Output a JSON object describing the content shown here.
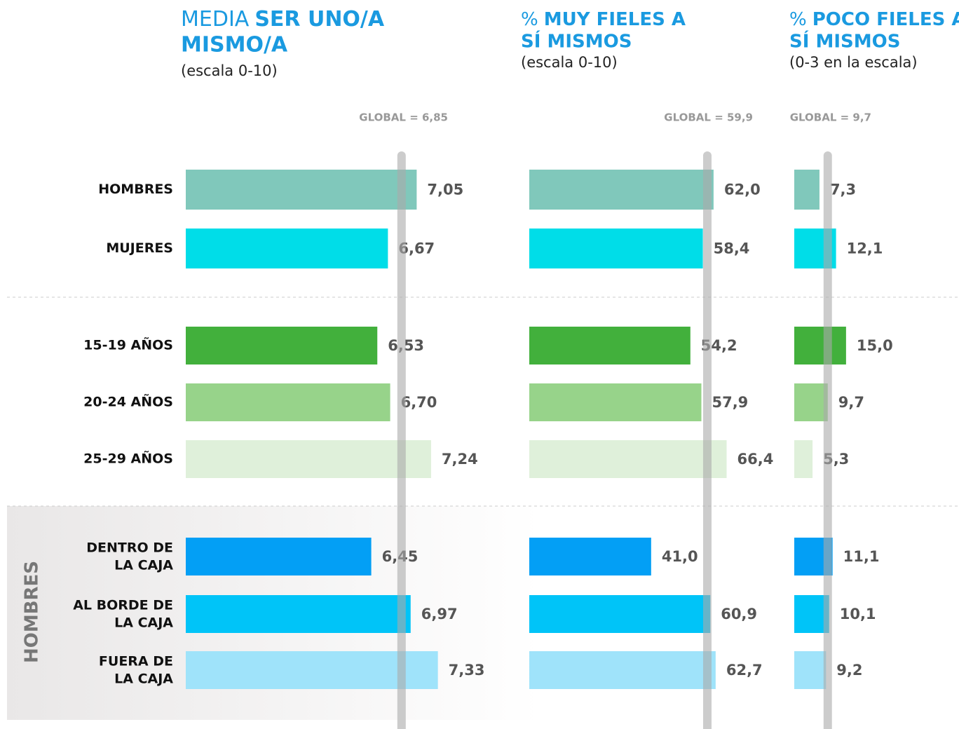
{
  "chart_data": {
    "type": "bar",
    "orientation": "horizontal",
    "categories": [
      "HOMBRES",
      "MUJERES",
      "15-19 AÑOS",
      "20-24 AÑOS",
      "25-29 AÑOS",
      [
        "DENTRO DE",
        "LA CAJA"
      ],
      [
        "AL BORDE DE",
        "LA CAJA"
      ],
      [
        "FUERA DE",
        "LA CAJA"
      ]
    ],
    "colors": [
      "#80c8bb",
      "#00dde8",
      "#42b03c",
      "#97d38a",
      "#dff0da",
      "#039ff5",
      "#00c4f8",
      "#9fe3fa"
    ],
    "group_label": "HOMBRES",
    "panels": [
      {
        "title": {
          "light": "MEDIA",
          "bold": [
            "SER UNO/A",
            "MISMO/A"
          ]
        },
        "subtitle": "(escala 0-10)",
        "global": 6.85,
        "global_label": "GLOBAL = 6,85",
        "xlim": [
          4,
          8
        ],
        "values": [
          7.05,
          6.67,
          6.53,
          6.7,
          7.24,
          6.45,
          6.97,
          7.33
        ],
        "value_labels": [
          "7,05",
          "6,67",
          "6,53",
          "6,70",
          "7,24",
          "6,45",
          "6,97",
          "7,33"
        ]
      },
      {
        "title": {
          "light": "%",
          "bold": [
            "MUY FIELES A",
            "SÍ MISMOS"
          ]
        },
        "subtitle": "(escala 0-10)",
        "global": 59.9,
        "global_label": "GLOBAL = 59,9",
        "xlim": [
          0,
          100
        ],
        "values": [
          62.0,
          58.4,
          54.2,
          57.9,
          66.4,
          41.0,
          60.9,
          62.7
        ],
        "value_labels": [
          "62,0",
          "58,4",
          "54,2",
          "57,9",
          "66,4",
          "41,0",
          "60,9",
          "62,7"
        ]
      },
      {
        "title": {
          "light": "%",
          "bold": [
            "POCO FIELES A",
            "SÍ MISMOS"
          ]
        },
        "subtitle": "(0-3 en la escala)",
        "global": 9.7,
        "global_label": "GLOBAL = 9,7",
        "xlim": [
          0,
          40
        ],
        "values": [
          7.3,
          12.1,
          15.0,
          9.7,
          5.3,
          11.1,
          10.1,
          9.2
        ],
        "value_labels": [
          "7,3",
          "12,1",
          "15,0",
          "9,7",
          "5,3",
          "11,1",
          "10,1",
          "9,2"
        ]
      }
    ]
  }
}
